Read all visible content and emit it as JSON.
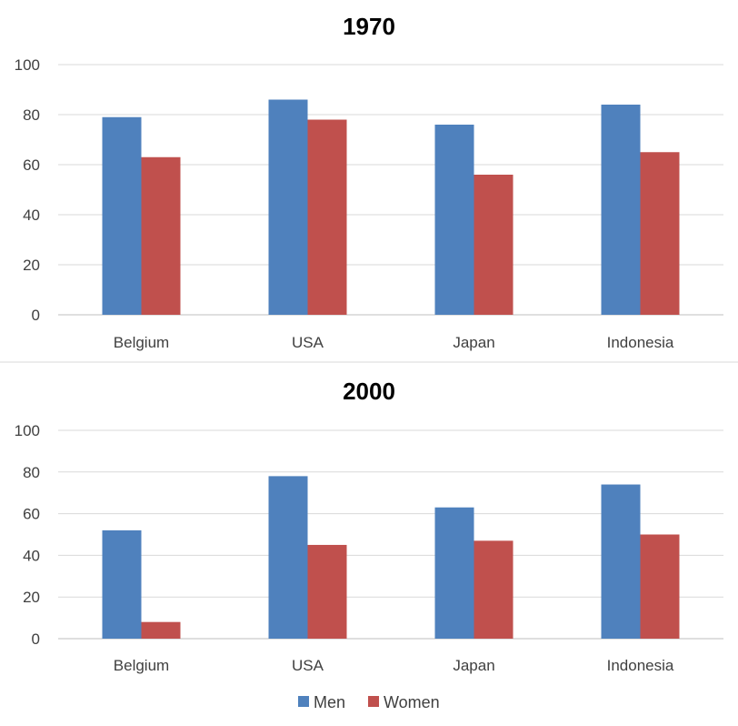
{
  "chart_data": [
    {
      "type": "bar",
      "title": "1970",
      "categories": [
        "Belgium",
        "USA",
        "Japan",
        "Indonesia"
      ],
      "series": [
        {
          "name": "Men",
          "color": "#4f81bd",
          "values": [
            79,
            86,
            76,
            84
          ]
        },
        {
          "name": "Women",
          "color": "#c0504d",
          "values": [
            63,
            78,
            56,
            65
          ]
        }
      ],
      "ylim": [
        0,
        100
      ],
      "yticks": [
        0,
        20,
        40,
        60,
        80,
        100
      ],
      "grid": true
    },
    {
      "type": "bar",
      "title": "2000",
      "categories": [
        "Belgium",
        "USA",
        "Japan",
        "Indonesia"
      ],
      "series": [
        {
          "name": "Men",
          "color": "#4f81bd",
          "values": [
            52,
            78,
            63,
            74
          ]
        },
        {
          "name": "Women",
          "color": "#c0504d",
          "values": [
            8,
            45,
            47,
            50
          ]
        }
      ],
      "ylim": [
        0,
        100
      ],
      "yticks": [
        0,
        20,
        40,
        60,
        80,
        100
      ],
      "grid": true
    }
  ],
  "legend": {
    "placement": "bottom",
    "items": [
      {
        "label": "Men",
        "color": "#4f81bd"
      },
      {
        "label": "Women",
        "color": "#c0504d"
      }
    ]
  }
}
